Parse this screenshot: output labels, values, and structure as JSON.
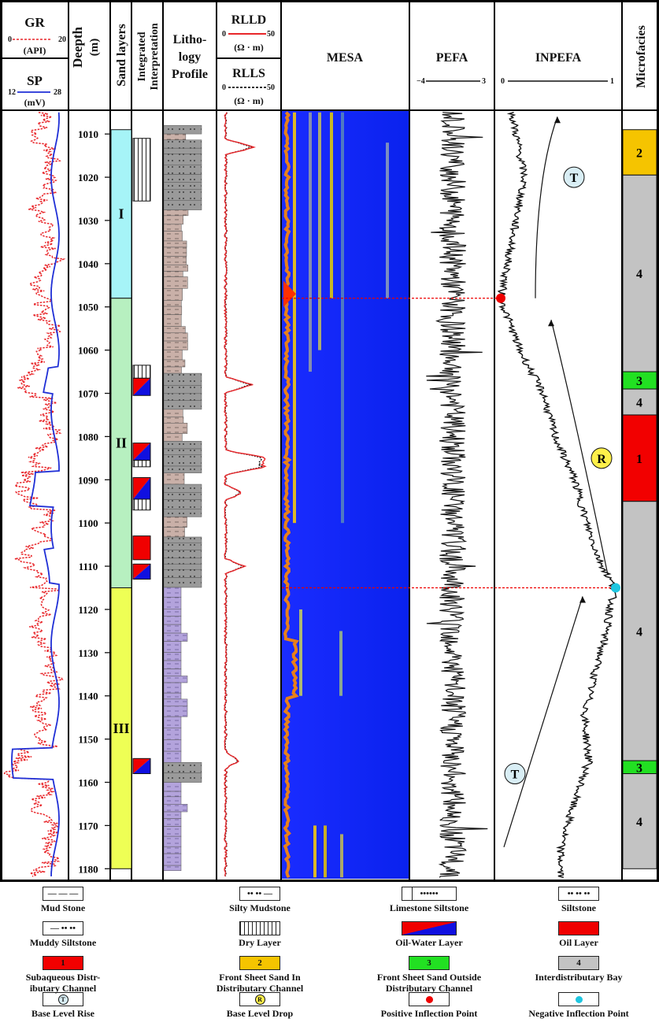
{
  "header": {
    "gr": {
      "title": "GR",
      "min": "0",
      "max": "20",
      "unit": "(API)",
      "color": "#e8262a"
    },
    "sp": {
      "title": "SP",
      "min": "12",
      "max": "28",
      "unit": "(mV)",
      "color": "#1f2fd6"
    },
    "depth": {
      "title": "Deepth",
      "unit": "(m)"
    },
    "sand": "Sand layers",
    "interp": "Integrated Interpretation",
    "litho": [
      "Litho-",
      "logy",
      "Profile"
    ],
    "rlld": {
      "title": "RLLD",
      "min": "0",
      "max": "50",
      "unit": "(Ω · m)"
    },
    "rlls": {
      "title": "RLLS",
      "min": "0",
      "max": "50",
      "unit": "(Ω · m)"
    },
    "mesa": "MESA",
    "pefa": {
      "title": "PEFA",
      "min": "−4",
      "max": "3"
    },
    "inpefa": {
      "title": "INPEFA",
      "min": "0",
      "max": "1"
    },
    "micro": "Microfacies"
  },
  "depth_ticks": [
    "1010",
    "1020",
    "1030",
    "1040",
    "1050",
    "1060",
    "1070",
    "1080",
    "1090",
    "1100",
    "1110",
    "1120",
    "1130",
    "1140",
    "1150",
    "1160",
    "1170",
    "1180"
  ],
  "sand_layers": [
    {
      "label": "I",
      "top": 1009,
      "bottom": 1048,
      "color": "#a6f4f7"
    },
    {
      "label": "II",
      "top": 1048,
      "bottom": 1115,
      "color": "#b7f0c0"
    },
    {
      "label": "III",
      "top": 1115,
      "bottom": 1180,
      "color": "#eeff55"
    }
  ],
  "interpretation": [
    {
      "type": "dry",
      "top": 1011,
      "bottom": 1025.5
    },
    {
      "type": "dry",
      "top": 1063.5,
      "bottom": 1066.5
    },
    {
      "type": "oilwater",
      "top": 1066.5,
      "bottom": 1070.5
    },
    {
      "type": "oilwater",
      "top": 1081.5,
      "bottom": 1085.5
    },
    {
      "type": "dry",
      "top": 1085.5,
      "bottom": 1087
    },
    {
      "type": "oilwater",
      "top": 1089.5,
      "bottom": 1094.5
    },
    {
      "type": "dry",
      "top": 1094.5,
      "bottom": 1097
    },
    {
      "type": "oil",
      "top": 1103,
      "bottom": 1108.5
    },
    {
      "type": "oilwater",
      "top": 1109.5,
      "bottom": 1113
    },
    {
      "type": "oilwater",
      "top": 1154.5,
      "bottom": 1158
    }
  ],
  "microfacies": [
    {
      "label": "2",
      "top": 1009,
      "bottom": 1019.5,
      "color": "#f5c400"
    },
    {
      "label": "4",
      "top": 1019.5,
      "bottom": 1065,
      "color": "#c3c3c3"
    },
    {
      "label": "3",
      "top": 1065,
      "bottom": 1069,
      "color": "#22e022"
    },
    {
      "label": "4",
      "top": 1069,
      "bottom": 1075,
      "color": "#c3c3c3"
    },
    {
      "label": "1",
      "top": 1075,
      "bottom": 1095,
      "color": "#f20000"
    },
    {
      "label": "4",
      "top": 1095,
      "bottom": 1155,
      "color": "#c3c3c3"
    },
    {
      "label": "3",
      "top": 1155,
      "bottom": 1158,
      "color": "#22e022"
    },
    {
      "label": "4",
      "top": 1158,
      "bottom": 1180,
      "color": "#c3c3c3"
    }
  ],
  "markers": [
    {
      "type": "T",
      "depth": 1020
    },
    {
      "type": "R",
      "depth": 1085
    },
    {
      "type": "T",
      "depth": 1158
    }
  ],
  "inflection": {
    "positive_depth": 1048,
    "negative_depth": 1115,
    "positive_color": "#ee0000",
    "negative_color": "#1fc6e0"
  },
  "legend": [
    {
      "key": "mudstone",
      "label": "Mud Stone"
    },
    {
      "key": "silty-mudstone",
      "label": "Silty Mudstone"
    },
    {
      "key": "limestone-siltstone",
      "label": "Limestone Siltstone"
    },
    {
      "key": "siltstone",
      "label": "Siltstone"
    },
    {
      "key": "muddy-siltstone",
      "label": "Muddy Siltstone"
    },
    {
      "key": "dry-layer",
      "label": "Dry Layer"
    },
    {
      "key": "oil-water-layer",
      "label": "Oil-Water Layer"
    },
    {
      "key": "oil-layer",
      "label": "Oil Layer"
    },
    {
      "key": "mf1",
      "label": "Subaqueous Distributary Channel",
      "label_lines": [
        "Subaqueous Distr-",
        "ibutary Channel"
      ],
      "code": "1"
    },
    {
      "key": "mf2",
      "label": "Front Sheet Sand In Distributary Channel",
      "label_lines": [
        "Front Sheet Sand In",
        "Distributary Channel"
      ],
      "code": "2"
    },
    {
      "key": "mf3",
      "label": "Front Sheet Sand Outside Distributary Channel",
      "label_lines": [
        "Front Sheet Sand Outside",
        "Distributary Channel"
      ],
      "code": "3"
    },
    {
      "key": "mf4",
      "label": "Interdistributary Bay",
      "code": "4"
    },
    {
      "key": "base-rise",
      "label": "Base Level Rise",
      "code": "T"
    },
    {
      "key": "base-drop",
      "label": "Base Level Drop",
      "code": "R"
    },
    {
      "key": "pos-inflection",
      "label": "Positive Inflection Point"
    },
    {
      "key": "neg-inflection",
      "label": "Negative Inflection Point"
    }
  ]
}
